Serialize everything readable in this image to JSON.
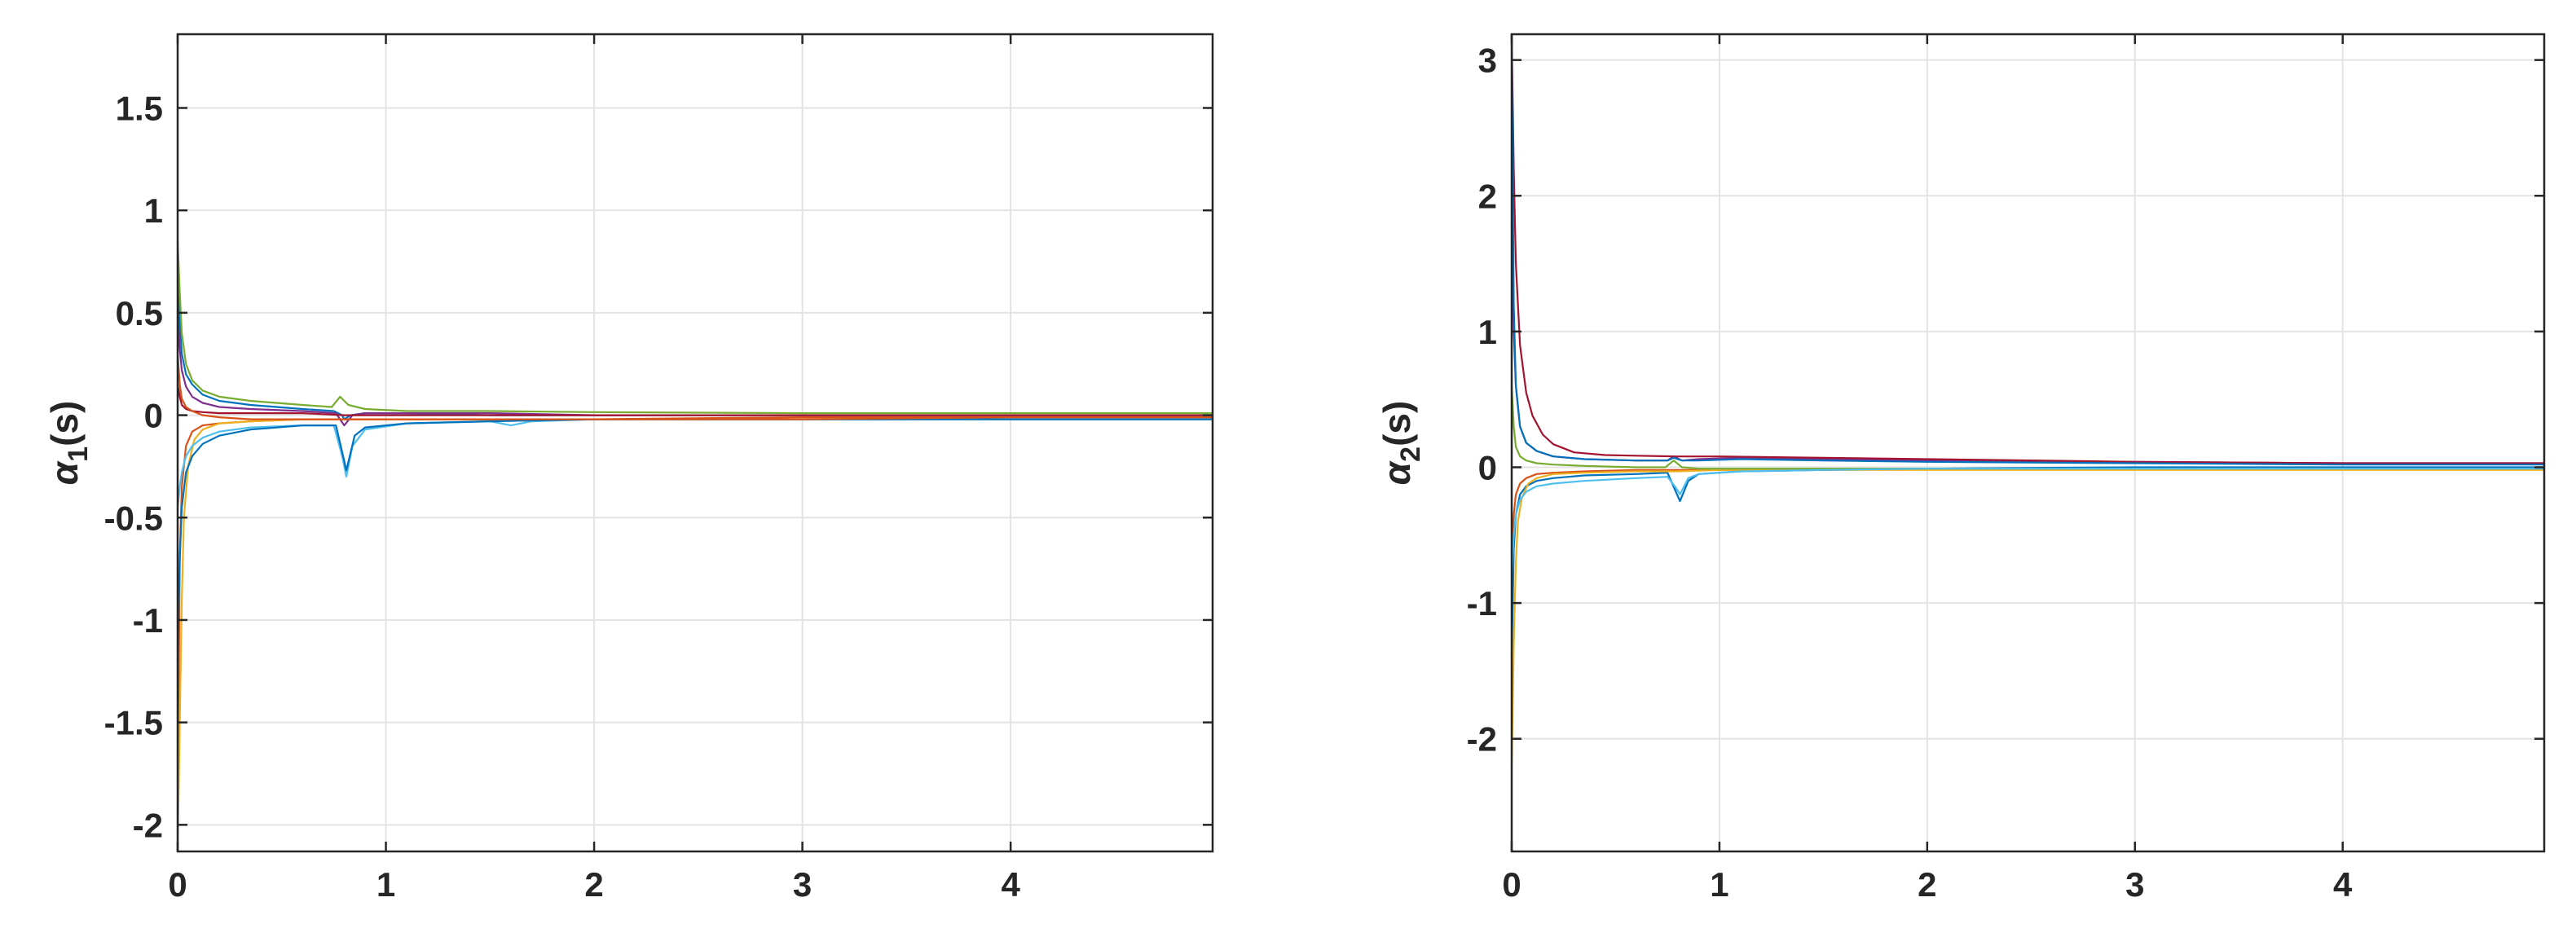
{
  "colors": {
    "axis": "#262626",
    "grid": "#e3e3e3",
    "series": [
      "#0072bd",
      "#d95319",
      "#edb120",
      "#7e2f8e",
      "#77ac30",
      "#4dbeee",
      "#a2142f"
    ]
  },
  "chart_data": [
    {
      "type": "line",
      "title": "",
      "xlabel": "",
      "ylabel": {
        "symbol": "α",
        "subscript": "1",
        "suffix": "(s)"
      },
      "xlim": [
        0,
        4.97
      ],
      "ylim": [
        -2.13,
        1.86
      ],
      "xticks": [
        0,
        1,
        2,
        3,
        4
      ],
      "xtick_labels": [
        "0",
        "1",
        "2",
        "3",
        "4"
      ],
      "yticks": [
        -2,
        -1.5,
        -1,
        -0.5,
        0,
        0.5,
        1,
        1.5
      ],
      "ytick_labels": [
        "-2",
        "-1.5",
        "-1",
        "-0.5",
        "0",
        "0.5",
        "1",
        "1.5"
      ],
      "grid": true,
      "series": [
        {
          "color": "#0072bd",
          "x": [
            0,
            0.01,
            0.02,
            0.04,
            0.07,
            0.12,
            0.2,
            0.35,
            0.6,
            0.75,
            0.79,
            0.8,
            0.83,
            0.9,
            1.1,
            1.5,
            2,
            3,
            4,
            4.97
          ],
          "y": [
            0.72,
            0.45,
            0.3,
            0.2,
            0.15,
            0.1,
            0.07,
            0.05,
            0.03,
            0.02,
            0.0,
            -0.02,
            0.0,
            0.01,
            0.01,
            0.0,
            0.0,
            0.0,
            0.0,
            0.0
          ]
        },
        {
          "color": "#d95319",
          "x": [
            0,
            0.01,
            0.02,
            0.04,
            0.07,
            0.12,
            0.2,
            0.35,
            0.6,
            0.8,
            1.0,
            1.5,
            2,
            3,
            4,
            4.97
          ],
          "y": [
            -1.95,
            -0.7,
            -0.35,
            -0.15,
            -0.08,
            -0.05,
            -0.04,
            -0.03,
            -0.02,
            -0.02,
            -0.02,
            -0.02,
            -0.02,
            -0.01,
            -0.01,
            -0.01
          ]
        },
        {
          "color": "#edb120",
          "x": [
            0,
            0.01,
            0.02,
            0.03,
            0.05,
            0.08,
            0.12,
            0.2,
            0.35,
            0.6,
            0.8,
            1.0,
            1.5,
            2,
            3,
            4,
            4.97
          ],
          "y": [
            -2.13,
            -1.5,
            -0.9,
            -0.5,
            -0.25,
            -0.12,
            -0.07,
            -0.04,
            -0.03,
            -0.02,
            -0.02,
            -0.02,
            -0.02,
            -0.02,
            -0.02,
            -0.02,
            -0.02
          ]
        },
        {
          "color": "#7e2f8e",
          "x": [
            0,
            0.01,
            0.02,
            0.04,
            0.07,
            0.12,
            0.2,
            0.35,
            0.6,
            0.76,
            0.8,
            0.84,
            0.9,
            1.1,
            1.5,
            2,
            3,
            4,
            4.97
          ],
          "y": [
            0.5,
            0.32,
            0.22,
            0.14,
            0.09,
            0.06,
            0.04,
            0.03,
            0.02,
            0.01,
            -0.05,
            0.0,
            0.01,
            0.01,
            0.01,
            0.0,
            0.0,
            0.0,
            0.0
          ]
        },
        {
          "color": "#77ac30",
          "x": [
            0,
            0.01,
            0.02,
            0.04,
            0.07,
            0.12,
            0.2,
            0.35,
            0.6,
            0.74,
            0.78,
            0.82,
            0.9,
            1.1,
            1.5,
            2,
            3,
            4,
            4.97
          ],
          "y": [
            0.85,
            0.6,
            0.4,
            0.25,
            0.17,
            0.12,
            0.09,
            0.07,
            0.05,
            0.04,
            0.09,
            0.05,
            0.03,
            0.02,
            0.02,
            0.015,
            0.01,
            0.01,
            0.01
          ]
        },
        {
          "color": "#4dbeee",
          "x": [
            0,
            0.01,
            0.02,
            0.04,
            0.07,
            0.12,
            0.2,
            0.35,
            0.6,
            0.75,
            0.79,
            0.81,
            0.84,
            0.9,
            1.1,
            1.5,
            1.6,
            1.7,
            2,
            3,
            4,
            4.97
          ],
          "y": [
            -0.45,
            -0.35,
            -0.28,
            -0.2,
            -0.15,
            -0.11,
            -0.08,
            -0.06,
            -0.05,
            -0.05,
            -0.2,
            -0.3,
            -0.15,
            -0.07,
            -0.04,
            -0.03,
            -0.05,
            -0.03,
            -0.02,
            -0.02,
            -0.02,
            -0.02
          ]
        },
        {
          "color": "#a2142f",
          "x": [
            0,
            0.01,
            0.02,
            0.04,
            0.07,
            0.12,
            0.2,
            0.35,
            0.6,
            0.8,
            1.0,
            1.5,
            2,
            3,
            4,
            4.97
          ],
          "y": [
            0.15,
            0.09,
            0.05,
            0.03,
            0.02,
            0.015,
            0.01,
            0.01,
            0.01,
            0.0,
            0.0,
            0.0,
            0.0,
            0.0,
            0.0,
            0.0
          ]
        },
        {
          "color": "#0072bd",
          "x": [
            0,
            0.01,
            0.02,
            0.04,
            0.07,
            0.12,
            0.2,
            0.35,
            0.6,
            0.76,
            0.79,
            0.81,
            0.85,
            0.9,
            1.1,
            1.5,
            2,
            3,
            4,
            4.97
          ],
          "y": [
            -1.2,
            -0.7,
            -0.45,
            -0.28,
            -0.2,
            -0.14,
            -0.1,
            -0.07,
            -0.05,
            -0.05,
            -0.18,
            -0.27,
            -0.1,
            -0.06,
            -0.04,
            -0.03,
            -0.02,
            -0.02,
            -0.02,
            -0.02
          ]
        },
        {
          "color": "#d95319",
          "x": [
            0,
            0.01,
            0.02,
            0.04,
            0.07,
            0.12,
            0.2,
            0.35,
            0.6,
            0.8,
            1.0,
            1.5,
            2,
            3,
            4,
            4.97
          ],
          "y": [
            0.3,
            0.15,
            0.08,
            0.04,
            0.02,
            0.0,
            -0.01,
            -0.02,
            -0.02,
            -0.02,
            -0.02,
            -0.02,
            -0.02,
            -0.02,
            -0.01,
            -0.01
          ]
        }
      ]
    },
    {
      "type": "line",
      "title": "",
      "xlabel": "",
      "ylabel": {
        "symbol": "α",
        "subscript": "2",
        "suffix": "(s)"
      },
      "xlim": [
        0,
        4.97
      ],
      "ylim": [
        -2.83,
        3.19
      ],
      "xticks": [
        0,
        1,
        2,
        3,
        4
      ],
      "xtick_labels": [
        "0",
        "1",
        "2",
        "3",
        "4"
      ],
      "yticks": [
        -2,
        -1,
        0,
        1,
        2,
        3
      ],
      "ytick_labels": [
        "-2",
        "-1",
        "0",
        "1",
        "2",
        "3"
      ],
      "grid": true,
      "series": [
        {
          "color": "#0072bd",
          "x": [
            0,
            0.01,
            0.02,
            0.04,
            0.07,
            0.12,
            0.2,
            0.35,
            0.6,
            0.75,
            0.79,
            0.81,
            0.85,
            0.9,
            1.1,
            1.5,
            2,
            3,
            4,
            4.97
          ],
          "y": [
            -1.4,
            -0.6,
            -0.35,
            -0.2,
            -0.14,
            -0.1,
            -0.08,
            -0.06,
            -0.05,
            -0.04,
            -0.18,
            -0.25,
            -0.1,
            -0.05,
            -0.03,
            -0.02,
            -0.01,
            0.0,
            0.0,
            0.0
          ]
        },
        {
          "color": "#d95319",
          "x": [
            0,
            0.01,
            0.02,
            0.04,
            0.07,
            0.12,
            0.2,
            0.35,
            0.6,
            0.8,
            1.0,
            1.5,
            2,
            3,
            4,
            4.97
          ],
          "y": [
            -0.6,
            -0.35,
            -0.2,
            -0.12,
            -0.08,
            -0.05,
            -0.04,
            -0.03,
            -0.02,
            -0.02,
            -0.02,
            -0.02,
            -0.01,
            -0.01,
            -0.01,
            -0.01
          ]
        },
        {
          "color": "#edb120",
          "x": [
            0,
            0.01,
            0.02,
            0.03,
            0.05,
            0.08,
            0.12,
            0.2,
            0.35,
            0.6,
            0.8,
            1.0,
            1.5,
            2,
            3,
            4,
            4.97
          ],
          "y": [
            -2.2,
            -1.3,
            -0.7,
            -0.4,
            -0.22,
            -0.12,
            -0.08,
            -0.05,
            -0.04,
            -0.03,
            -0.03,
            -0.02,
            -0.02,
            -0.02,
            -0.02,
            -0.02,
            -0.02
          ]
        },
        {
          "color": "#7e2f8e",
          "x": [
            0,
            0.01,
            0.02,
            0.04,
            0.07,
            0.12,
            0.2,
            0.35,
            0.6,
            0.75,
            0.78,
            0.82,
            0.9,
            1.1,
            1.5,
            2,
            3,
            4,
            4.97
          ],
          "y": [
            1.8,
            1.0,
            0.6,
            0.3,
            0.18,
            0.12,
            0.08,
            0.06,
            0.05,
            0.05,
            0.08,
            0.05,
            0.06,
            0.07,
            0.06,
            0.05,
            0.04,
            0.03,
            0.03
          ]
        },
        {
          "color": "#77ac30",
          "x": [
            0,
            0.01,
            0.02,
            0.04,
            0.07,
            0.12,
            0.2,
            0.35,
            0.6,
            0.74,
            0.78,
            0.82,
            0.9,
            1.1,
            1.5,
            2,
            3,
            4,
            4.97
          ],
          "y": [
            0.6,
            0.3,
            0.15,
            0.08,
            0.05,
            0.03,
            0.02,
            0.01,
            0.0,
            0.0,
            0.05,
            0.0,
            -0.01,
            -0.01,
            -0.01,
            -0.01,
            -0.01,
            -0.01,
            -0.01
          ]
        },
        {
          "color": "#4dbeee",
          "x": [
            0,
            0.01,
            0.02,
            0.04,
            0.07,
            0.12,
            0.2,
            0.35,
            0.6,
            0.75,
            0.79,
            0.81,
            0.85,
            0.9,
            1.1,
            1.5,
            2,
            3,
            4,
            4.97
          ],
          "y": [
            -0.8,
            -0.5,
            -0.35,
            -0.24,
            -0.18,
            -0.14,
            -0.12,
            -0.1,
            -0.08,
            -0.07,
            -0.15,
            -0.2,
            -0.08,
            -0.05,
            -0.03,
            -0.02,
            -0.01,
            -0.01,
            -0.01,
            -0.01
          ]
        },
        {
          "color": "#a2142f",
          "x": [
            0,
            0.01,
            0.02,
            0.04,
            0.07,
            0.1,
            0.15,
            0.2,
            0.3,
            0.45,
            0.6,
            0.8,
            1.0,
            1.5,
            2,
            3,
            4,
            4.97
          ],
          "y": [
            3.19,
            2.2,
            1.5,
            0.9,
            0.55,
            0.38,
            0.24,
            0.17,
            0.11,
            0.09,
            0.085,
            0.08,
            0.08,
            0.07,
            0.06,
            0.04,
            0.03,
            0.03
          ]
        },
        {
          "color": "#0072bd",
          "x": [
            0,
            0.01,
            0.02,
            0.04,
            0.07,
            0.12,
            0.2,
            0.35,
            0.6,
            0.75,
            0.78,
            0.82,
            0.9,
            1.1,
            1.5,
            2,
            3,
            4,
            4.97
          ],
          "y": [
            3.19,
            1.2,
            0.6,
            0.3,
            0.18,
            0.12,
            0.08,
            0.06,
            0.05,
            0.05,
            0.07,
            0.05,
            0.05,
            0.06,
            0.05,
            0.04,
            0.03,
            0.02,
            0.02
          ]
        }
      ]
    }
  ]
}
